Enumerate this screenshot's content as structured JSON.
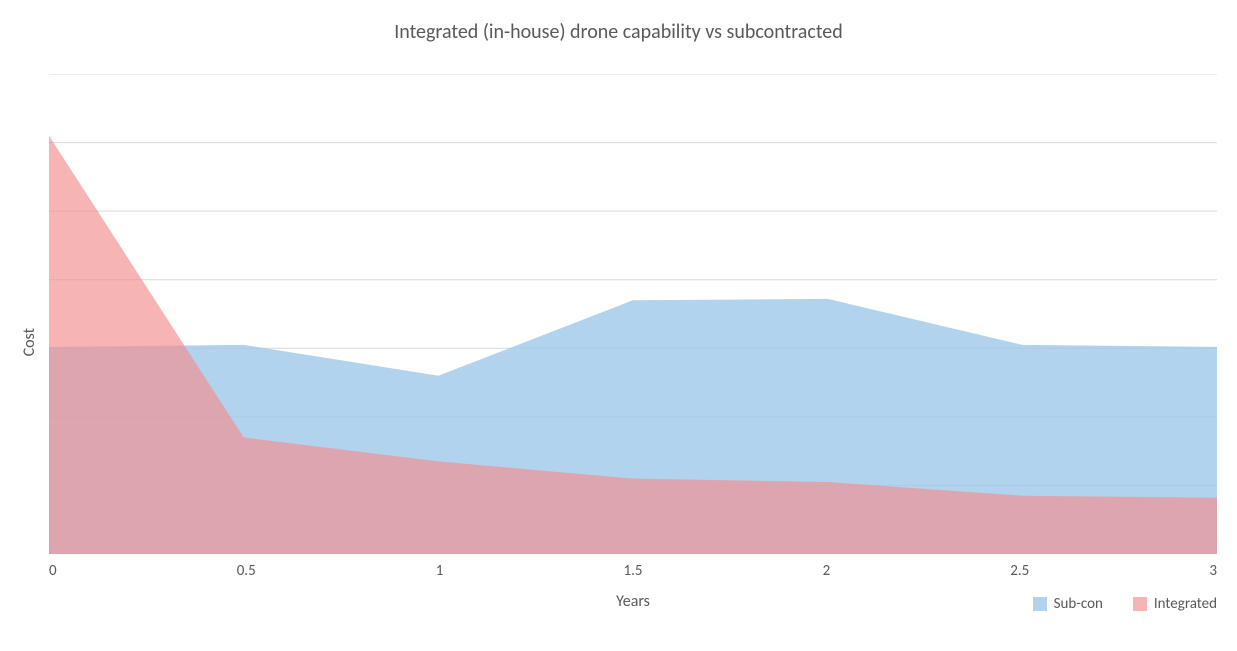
{
  "chart": {
    "type": "area",
    "title": "Integrated (in-house) drone capability vs subcontracted",
    "title_fontsize": 20,
    "title_color": "#595959",
    "xlabel": "Years",
    "ylabel": "Cost",
    "label_fontsize": 16,
    "label_color": "#595959",
    "background_color": "#ffffff",
    "xlim": [
      0,
      3
    ],
    "ylim": [
      0,
      7
    ],
    "xtick_step": 0.5,
    "xticks": [
      0,
      0.5,
      1,
      1.5,
      2,
      2.5,
      3
    ],
    "ytick_step": 1,
    "grid_on": true,
    "grid_color": "#d9d9d9",
    "grid_linewidth": 1,
    "tick_fontsize": 15,
    "tick_color": "#595959",
    "series": [
      {
        "name": "Sub-con",
        "fill_color": "#9bc6e8",
        "fill_opacity": 0.78,
        "line_width": 0,
        "x": [
          0,
          0.5,
          1,
          1.5,
          2,
          2.5,
          3
        ],
        "y": [
          3.02,
          3.05,
          2.6,
          3.7,
          3.72,
          3.05,
          3.02
        ]
      },
      {
        "name": "Integrated",
        "fill_color": "#f29091",
        "fill_opacity": 0.68,
        "line_width": 0,
        "x": [
          0,
          0.5,
          1,
          1.5,
          2,
          2.5,
          3
        ],
        "y": [
          6.1,
          1.7,
          1.35,
          1.1,
          1.05,
          0.85,
          0.82
        ]
      }
    ],
    "legend": {
      "position": "bottom-right",
      "items": [
        "Sub-con",
        "Integrated"
      ],
      "fontsize": 15,
      "swatch_size": 14
    }
  }
}
